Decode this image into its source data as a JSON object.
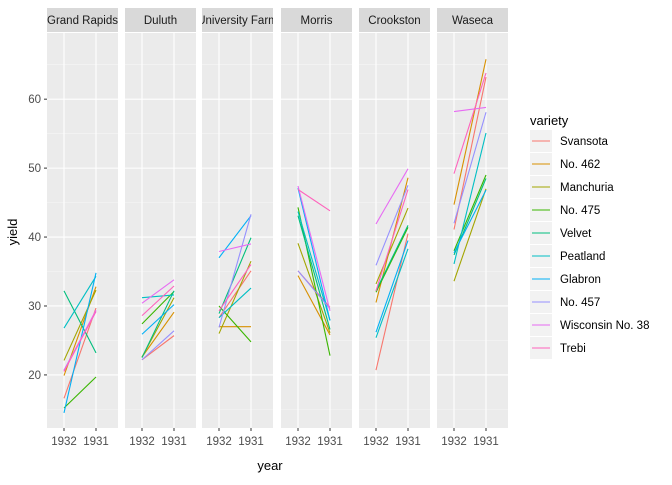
{
  "chart_data": {
    "type": "line",
    "xlabel": "year",
    "ylabel": "yield",
    "x_categories": [
      "1932",
      "1931"
    ],
    "ylim": [
      12.3,
      69.6
    ],
    "yticks": [
      20,
      30,
      40,
      50,
      60
    ],
    "legend": {
      "title": "variety",
      "position": "right"
    },
    "colors": {
      "Svansota": "#F8766D",
      "No. 462": "#D89000",
      "Manchuria": "#A3A500",
      "No. 475": "#39B600",
      "Velvet": "#00BF7D",
      "Peatland": "#00BFC4",
      "Glabron": "#00B0F6",
      "No. 457": "#9590FF",
      "Wisconsin No. 38": "#E76BF3",
      "Trebi": "#FF62BC"
    },
    "varieties": [
      "Svansota",
      "No. 462",
      "Manchuria",
      "No. 475",
      "Velvet",
      "Peatland",
      "Glabron",
      "No. 457",
      "Wisconsin No. 38",
      "Trebi"
    ],
    "panels": [
      {
        "site": "Grand Rapids",
        "series": [
          {
            "variety": "Svansota",
            "values": [
              16.6,
              29.7
            ]
          },
          {
            "variety": "No. 462",
            "values": [
              19.9,
              32.8
            ]
          },
          {
            "variety": "Manchuria",
            "values": [
              22.1,
              32.3
            ]
          },
          {
            "variety": "No. 475",
            "values": [
              15.2,
              19.7
            ]
          },
          {
            "variety": "Velvet",
            "values": [
              32.2,
              23.2
            ]
          },
          {
            "variety": "Peatland",
            "values": [
              26.8,
              34.3
            ]
          },
          {
            "variety": "Glabron",
            "values": [
              14.5,
              34.8
            ]
          },
          {
            "variety": "No. 457",
            "values": [
              20.7,
              29.2
            ]
          },
          {
            "variety": "Wisconsin No. 38",
            "values": [
              20.6,
              29.4
            ]
          },
          {
            "variety": "Trebi",
            "values": [
              20.5,
              29.2
            ]
          }
        ]
      },
      {
        "site": "Duluth",
        "series": [
          {
            "variety": "Svansota",
            "values": [
              22.2,
              25.7
            ]
          },
          {
            "variety": "No. 462",
            "values": [
              22.6,
              29.1
            ]
          },
          {
            "variety": "Manchuria",
            "values": [
              22.6,
              31.2
            ]
          },
          {
            "variety": "No. 475",
            "values": [
              27.4,
              32.1
            ]
          },
          {
            "variety": "Velvet",
            "values": [
              22.5,
              32.2
            ]
          },
          {
            "variety": "Peatland",
            "values": [
              31.2,
              31.6
            ]
          },
          {
            "variety": "Glabron",
            "values": [
              25.9,
              30.2
            ]
          },
          {
            "variety": "No. 457",
            "values": [
              22.2,
              26.4
            ]
          },
          {
            "variety": "Wisconsin No. 38",
            "values": [
              30.4,
              33.8
            ]
          },
          {
            "variety": "Trebi",
            "values": [
              28.6,
              32.9
            ]
          }
        ]
      },
      {
        "site": "University Farm",
        "series": [
          {
            "variety": "Svansota",
            "values": [
              28.3,
              35.1
            ]
          },
          {
            "variety": "No. 462",
            "values": [
              27.0,
              27.0
            ]
          },
          {
            "variety": "Manchuria",
            "values": [
              26.0,
              36.5
            ]
          },
          {
            "variety": "No. 475",
            "values": [
              30.0,
              24.8
            ]
          },
          {
            "variety": "Velvet",
            "values": [
              28.9,
              39.9
            ]
          },
          {
            "variety": "Peatland",
            "values": [
              28.3,
              32.6
            ]
          },
          {
            "variety": "Glabron",
            "values": [
              37.0,
              43.1
            ]
          },
          {
            "variety": "No. 457",
            "values": [
              26.9,
              43.3
            ]
          },
          {
            "variety": "Wisconsin No. 38",
            "values": [
              37.9,
              39.0
            ]
          },
          {
            "variety": "Trebi",
            "values": [
              29.3,
              36.0
            ]
          }
        ]
      },
      {
        "site": "Morris",
        "series": [
          {
            "variety": "Svansota",
            "values": [
              35.1,
              29.8
            ]
          },
          {
            "variety": "No. 462",
            "values": [
              34.4,
              25.8
            ]
          },
          {
            "variety": "Manchuria",
            "values": [
              39.1,
              26.1
            ]
          },
          {
            "variety": "No. 475",
            "values": [
              44.3,
              22.8
            ]
          },
          {
            "variety": "Velvet",
            "values": [
              43.1,
              26.6
            ]
          },
          {
            "variety": "Peatland",
            "values": [
              43.7,
              27.9
            ]
          },
          {
            "variety": "Glabron",
            "values": [
              47.1,
              27.9
            ]
          },
          {
            "variety": "No. 457",
            "values": [
              35.1,
              29.6
            ]
          },
          {
            "variety": "Wisconsin No. 38",
            "values": [
              47.4,
              29.3
            ]
          },
          {
            "variety": "Trebi",
            "values": [
              46.9,
              43.8
            ]
          }
        ]
      },
      {
        "site": "Crookston",
        "series": [
          {
            "variety": "Svansota",
            "values": [
              20.7,
              40.5
            ]
          },
          {
            "variety": "No. 462",
            "values": [
              30.5,
              48.6
            ]
          },
          {
            "variety": "Manchuria",
            "values": [
              33.2,
              44.2
            ]
          },
          {
            "variety": "No. 475",
            "values": [
              32.0,
              41.4
            ]
          },
          {
            "variety": "Velvet",
            "values": [
              32.2,
              41.7
            ]
          },
          {
            "variety": "Peatland",
            "values": [
              25.4,
              38.3
            ]
          },
          {
            "variety": "Glabron",
            "values": [
              26.2,
              39.5
            ]
          },
          {
            "variety": "No. 457",
            "values": [
              35.9,
              47.5
            ]
          },
          {
            "variety": "Wisconsin No. 38",
            "values": [
              41.9,
              49.9
            ]
          },
          {
            "variety": "Trebi",
            "values": [
              32.2,
              46.9
            ]
          }
        ]
      },
      {
        "site": "Waseca",
        "series": [
          {
            "variety": "Svansota",
            "values": [
              41.1,
              63.2
            ]
          },
          {
            "variety": "No. 462",
            "values": [
              44.7,
              65.8
            ]
          },
          {
            "variety": "Manchuria",
            "values": [
              33.6,
              47.0
            ]
          },
          {
            "variety": "No. 475",
            "values": [
              38.0,
              49.0
            ]
          },
          {
            "variety": "Velvet",
            "values": [
              37.4,
              48.5
            ]
          },
          {
            "variety": "Peatland",
            "values": [
              36.1,
              55.1
            ]
          },
          {
            "variety": "Glabron",
            "values": [
              37.7,
              46.8
            ]
          },
          {
            "variety": "No. 457",
            "values": [
              42.0,
              58.1
            ]
          },
          {
            "variety": "Wisconsin No. 38",
            "values": [
              58.2,
              58.8
            ]
          },
          {
            "variety": "Trebi",
            "values": [
              49.2,
              63.8
            ]
          }
        ]
      }
    ]
  }
}
